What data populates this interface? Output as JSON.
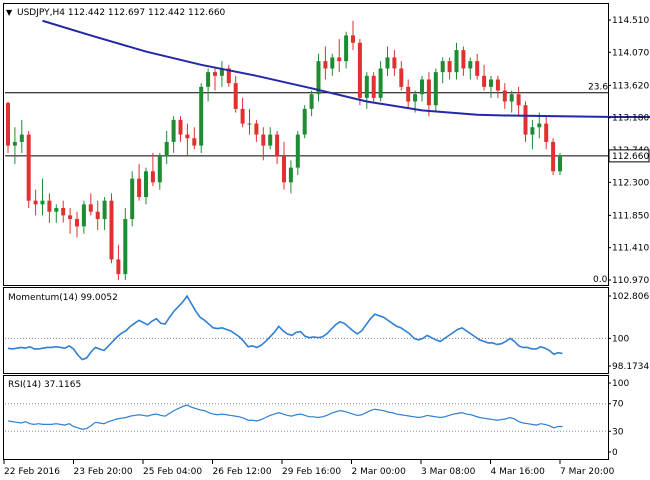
{
  "header": {
    "symbol_line": "USDJPY,H4  112.442 112.697 112.442 112.660"
  },
  "colors": {
    "bull": "#1e8c32",
    "bear": "#e03030",
    "ma": "#2228a8",
    "indicator": "#2f7fd3",
    "level_line": "#000000",
    "dotted_ref": "#8a8a8a",
    "frame": "#000000",
    "price_tag_bg": "#ffffff"
  },
  "chart_data": [
    {
      "type": "candlestick",
      "title": "USDJPY,H4",
      "ylim": [
        110.97,
        114.51
      ],
      "y_ticks": [
        "114.510",
        "114.070",
        "113.620",
        "113.180",
        "112.740",
        "112.300",
        "111.850",
        "111.410",
        "110.970"
      ],
      "x_ticks": [
        "22 Feb 2016",
        "23 Feb 20:00",
        "25 Feb 04:00",
        "26 Feb 12:00",
        "29 Feb 16:00",
        "2 Mar 00:00",
        "3 Mar 08:00",
        "4 Mar 16:00",
        "7 Mar 20:00"
      ],
      "current_price_label": "112.660",
      "fib_labels": [
        "23.6",
        "0.0"
      ],
      "fib_levels": [
        113.52,
        112.66
      ],
      "ohlc": [
        [
          113.38,
          113.4,
          112.7,
          112.8
        ],
        [
          112.8,
          113.05,
          112.55,
          112.85
        ],
        [
          112.85,
          113.15,
          112.7,
          112.95
        ],
        [
          112.95,
          113.0,
          111.95,
          112.05
        ],
        [
          112.05,
          112.2,
          111.85,
          112.0
        ],
        [
          112.0,
          112.35,
          111.85,
          112.05
        ],
        [
          112.05,
          112.15,
          111.75,
          111.9
        ],
        [
          111.9,
          112.0,
          111.75,
          111.95
        ],
        [
          111.95,
          112.05,
          111.75,
          111.85
        ],
        [
          111.85,
          111.95,
          111.6,
          111.8
        ],
        [
          111.8,
          111.9,
          111.55,
          111.7
        ],
        [
          111.7,
          112.05,
          111.6,
          112.0
        ],
        [
          112.0,
          112.15,
          111.85,
          111.9
        ],
        [
          111.9,
          112.05,
          111.65,
          111.8
        ],
        [
          111.8,
          112.1,
          111.65,
          112.05
        ],
        [
          112.05,
          112.15,
          111.2,
          111.25
        ],
        [
          111.25,
          111.45,
          110.97,
          111.05
        ],
        [
          111.05,
          111.95,
          110.97,
          111.8
        ],
        [
          111.8,
          112.45,
          111.7,
          112.35
        ],
        [
          112.35,
          112.55,
          112.05,
          112.1
        ],
        [
          112.1,
          112.5,
          112.0,
          112.45
        ],
        [
          112.45,
          112.7,
          112.25,
          112.3
        ],
        [
          112.3,
          112.7,
          112.2,
          112.65
        ],
        [
          112.65,
          113.0,
          112.55,
          112.85
        ],
        [
          112.85,
          113.2,
          112.7,
          113.15
        ],
        [
          113.15,
          113.2,
          112.85,
          112.95
        ],
        [
          112.95,
          113.1,
          112.65,
          112.9
        ],
        [
          112.9,
          113.05,
          112.75,
          112.8
        ],
        [
          112.8,
          113.65,
          112.7,
          113.6
        ],
        [
          113.6,
          113.85,
          113.4,
          113.8
        ],
        [
          113.8,
          113.85,
          113.55,
          113.75
        ],
        [
          113.75,
          113.95,
          113.6,
          113.85
        ],
        [
          113.85,
          113.9,
          113.6,
          113.65
        ],
        [
          113.65,
          113.75,
          113.25,
          113.3
        ],
        [
          113.3,
          113.45,
          113.05,
          113.1
        ],
        [
          113.1,
          113.3,
          112.95,
          113.1
        ],
        [
          113.1,
          113.15,
          112.85,
          112.95
        ],
        [
          112.95,
          113.05,
          112.6,
          112.8
        ],
        [
          112.8,
          113.05,
          112.75,
          112.95
        ],
        [
          112.95,
          113.0,
          112.55,
          112.65
        ],
        [
          112.65,
          112.85,
          112.2,
          112.3
        ],
        [
          112.3,
          112.6,
          112.15,
          112.5
        ],
        [
          112.5,
          113.0,
          112.4,
          112.95
        ],
        [
          112.95,
          113.35,
          112.9,
          113.3
        ],
        [
          113.3,
          113.55,
          113.2,
          113.5
        ],
        [
          113.5,
          114.05,
          113.4,
          113.95
        ],
        [
          113.95,
          114.15,
          113.7,
          113.85
        ],
        [
          113.85,
          114.05,
          113.75,
          114.0
        ],
        [
          114.0,
          114.25,
          113.8,
          113.95
        ],
        [
          113.95,
          114.35,
          113.85,
          114.3
        ],
        [
          114.3,
          114.5,
          114.1,
          114.2
        ],
        [
          114.2,
          114.25,
          113.35,
          113.45
        ],
        [
          113.45,
          113.8,
          113.3,
          113.75
        ],
        [
          113.75,
          113.8,
          113.4,
          113.45
        ],
        [
          113.45,
          113.95,
          113.4,
          113.85
        ],
        [
          113.85,
          114.15,
          113.75,
          114.0
        ],
        [
          114.0,
          114.1,
          113.75,
          113.85
        ],
        [
          113.85,
          113.95,
          113.55,
          113.6
        ],
        [
          113.6,
          113.7,
          113.3,
          113.4
        ],
        [
          113.4,
          113.55,
          113.25,
          113.5
        ],
        [
          113.5,
          113.75,
          113.4,
          113.7
        ],
        [
          113.7,
          113.8,
          113.2,
          113.35
        ],
        [
          113.35,
          113.85,
          113.25,
          113.8
        ],
        [
          113.8,
          114.0,
          113.65,
          113.95
        ],
        [
          113.95,
          114.0,
          113.7,
          113.8
        ],
        [
          113.8,
          114.2,
          113.7,
          114.1
        ],
        [
          114.1,
          114.15,
          113.75,
          113.85
        ],
        [
          113.85,
          114.0,
          113.7,
          113.95
        ],
        [
          113.95,
          114.05,
          113.7,
          113.75
        ],
        [
          113.75,
          113.9,
          113.55,
          113.6
        ],
        [
          113.6,
          113.75,
          113.45,
          113.7
        ],
        [
          113.7,
          113.75,
          113.45,
          113.55
        ],
        [
          113.55,
          113.65,
          113.3,
          113.4
        ],
        [
          113.4,
          113.55,
          113.25,
          113.5
        ],
        [
          113.5,
          113.6,
          113.2,
          113.35
        ],
        [
          113.35,
          113.4,
          112.85,
          112.95
        ],
        [
          112.95,
          113.15,
          112.75,
          113.05
        ],
        [
          113.05,
          113.25,
          112.9,
          113.1
        ],
        [
          113.1,
          113.2,
          112.75,
          112.85
        ],
        [
          112.85,
          112.9,
          112.4,
          112.45
        ],
        [
          112.45,
          112.7,
          112.4,
          112.66
        ]
      ],
      "ma": [
        [
          5,
          114.5
        ],
        [
          12,
          114.3
        ],
        [
          20,
          114.08
        ],
        [
          28,
          113.9
        ],
        [
          36,
          113.75
        ],
        [
          44,
          113.58
        ],
        [
          52,
          113.4
        ],
        [
          60,
          113.28
        ],
        [
          68,
          113.22
        ],
        [
          72,
          113.21
        ],
        [
          80,
          113.2
        ],
        [
          88,
          113.19
        ],
        [
          96,
          113.19
        ],
        [
          104,
          113.22
        ],
        [
          112,
          113.26
        ],
        [
          120,
          113.28
        ],
        [
          128,
          113.28
        ],
        [
          136,
          113.25
        ],
        [
          144,
          113.24
        ]
      ]
    },
    {
      "type": "line",
      "title": "Momentum(14) 99.0052",
      "ylim": [
        98.1734,
        102.8067
      ],
      "y_ticks": [
        "102.8067",
        "100",
        "98.1734"
      ],
      "reference": 100,
      "values": [
        99.35,
        99.3,
        99.35,
        99.4,
        99.35,
        99.45,
        99.3,
        99.3,
        99.35,
        99.4,
        99.4,
        99.45,
        99.4,
        99.35,
        99.5,
        99.3,
        98.9,
        98.6,
        98.7,
        99.1,
        99.4,
        99.3,
        99.2,
        99.5,
        99.8,
        100.1,
        100.35,
        100.5,
        100.8,
        101.0,
        101.2,
        101.05,
        100.9,
        101.15,
        101.3,
        101.0,
        100.95,
        101.4,
        101.8,
        102.1,
        102.4,
        102.8,
        102.3,
        101.8,
        101.4,
        101.2,
        100.95,
        100.7,
        100.65,
        100.7,
        100.6,
        100.5,
        100.3,
        100.1,
        99.8,
        99.45,
        99.5,
        99.4,
        99.55,
        99.8,
        100.1,
        100.4,
        100.8,
        100.5,
        100.3,
        100.2,
        100.4,
        100.45,
        100.15,
        100.05,
        100.1,
        100.05,
        100.1,
        100.3,
        100.6,
        100.9,
        101.1,
        101.0,
        100.75,
        100.5,
        100.3,
        100.5,
        100.9,
        101.3,
        101.6,
        101.5,
        101.4,
        101.2,
        101.0,
        100.8,
        100.7,
        100.5,
        100.3,
        100.0,
        99.9,
        100.0,
        100.2,
        100.05,
        99.9,
        99.8,
        100.0,
        100.2,
        100.4,
        100.6,
        100.7,
        100.5,
        100.3,
        100.1,
        99.9,
        99.8,
        99.7,
        99.7,
        99.6,
        99.65,
        99.8,
        100.0,
        99.8,
        99.5,
        99.4,
        99.4,
        99.3,
        99.3,
        99.45,
        99.35,
        99.2,
        98.95,
        99.05,
        99.0
      ]
    },
    {
      "type": "line",
      "title": "RSI(14) 37.1165",
      "ylim": [
        0,
        100
      ],
      "y_ticks": [
        "100",
        "70",
        "30",
        "0"
      ],
      "reference_levels": [
        70,
        30
      ],
      "values": [
        45,
        44,
        43,
        42,
        44,
        41,
        40,
        41,
        40,
        40,
        40,
        41,
        40,
        39,
        41,
        37,
        35,
        33,
        34,
        38,
        43,
        42,
        41,
        44,
        46,
        48,
        49,
        50,
        52,
        53,
        54,
        53,
        52,
        54,
        55,
        53,
        52,
        56,
        60,
        63,
        66,
        68,
        65,
        63,
        61,
        60,
        57,
        55,
        54,
        55,
        54,
        53,
        52,
        51,
        49,
        46,
        46,
        45,
        47,
        50,
        53,
        55,
        57,
        55,
        53,
        52,
        54,
        55,
        53,
        51,
        51,
        50,
        51,
        53,
        56,
        58,
        60,
        59,
        57,
        55,
        53,
        54,
        57,
        60,
        62,
        61,
        60,
        58,
        57,
        55,
        54,
        53,
        52,
        51,
        50,
        51,
        53,
        52,
        51,
        50,
        51,
        53,
        55,
        56,
        57,
        55,
        54,
        52,
        50,
        49,
        48,
        47,
        46,
        47,
        48,
        50,
        48,
        44,
        42,
        41,
        40,
        39,
        41,
        40,
        38,
        35,
        37,
        37
      ]
    }
  ]
}
